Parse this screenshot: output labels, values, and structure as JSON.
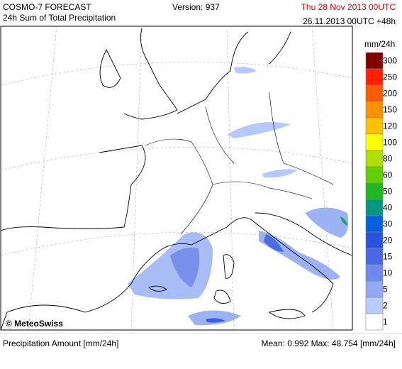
{
  "header": {
    "title": "COSMO-7 FORECAST",
    "subtitle": "24h Sum of Total Precipitation",
    "version": "Version: 937",
    "valid_time": "Thu 28 Nov 2013 00UTC",
    "run_time": "26.11.2013 00UTC +48h"
  },
  "map": {
    "credit": "© MeteoSwiss"
  },
  "legend": {
    "unit": "mm/24h",
    "levels": [
      {
        "label": 300,
        "color": "#800000"
      },
      {
        "label": 250,
        "color": "#ff2000"
      },
      {
        "label": 200,
        "color": "#ff5a00"
      },
      {
        "label": 150,
        "color": "#ff9000"
      },
      {
        "label": 120,
        "color": "#ffc000"
      },
      {
        "label": 100,
        "color": "#ffff00"
      },
      {
        "label": 80,
        "color": "#b0e000"
      },
      {
        "label": 60,
        "color": "#60d000"
      },
      {
        "label": 50,
        "color": "#20b820"
      },
      {
        "label": 40,
        "color": "#009880"
      },
      {
        "label": 30,
        "color": "#0060e0"
      },
      {
        "label": 20,
        "color": "#2a52e0"
      },
      {
        "label": 15,
        "color": "#4868e4"
      },
      {
        "label": 10,
        "color": "#6c8af0"
      },
      {
        "label": 5,
        "color": "#90aaf6"
      },
      {
        "label": 2,
        "color": "#b8ccfc"
      },
      {
        "label": 1,
        "color": "#ffffff"
      }
    ]
  },
  "footer": {
    "label": "Precipitation Amount [mm/24h]",
    "stats": "Mean:  0.992 Max: 48.754 [mm/24h]"
  }
}
